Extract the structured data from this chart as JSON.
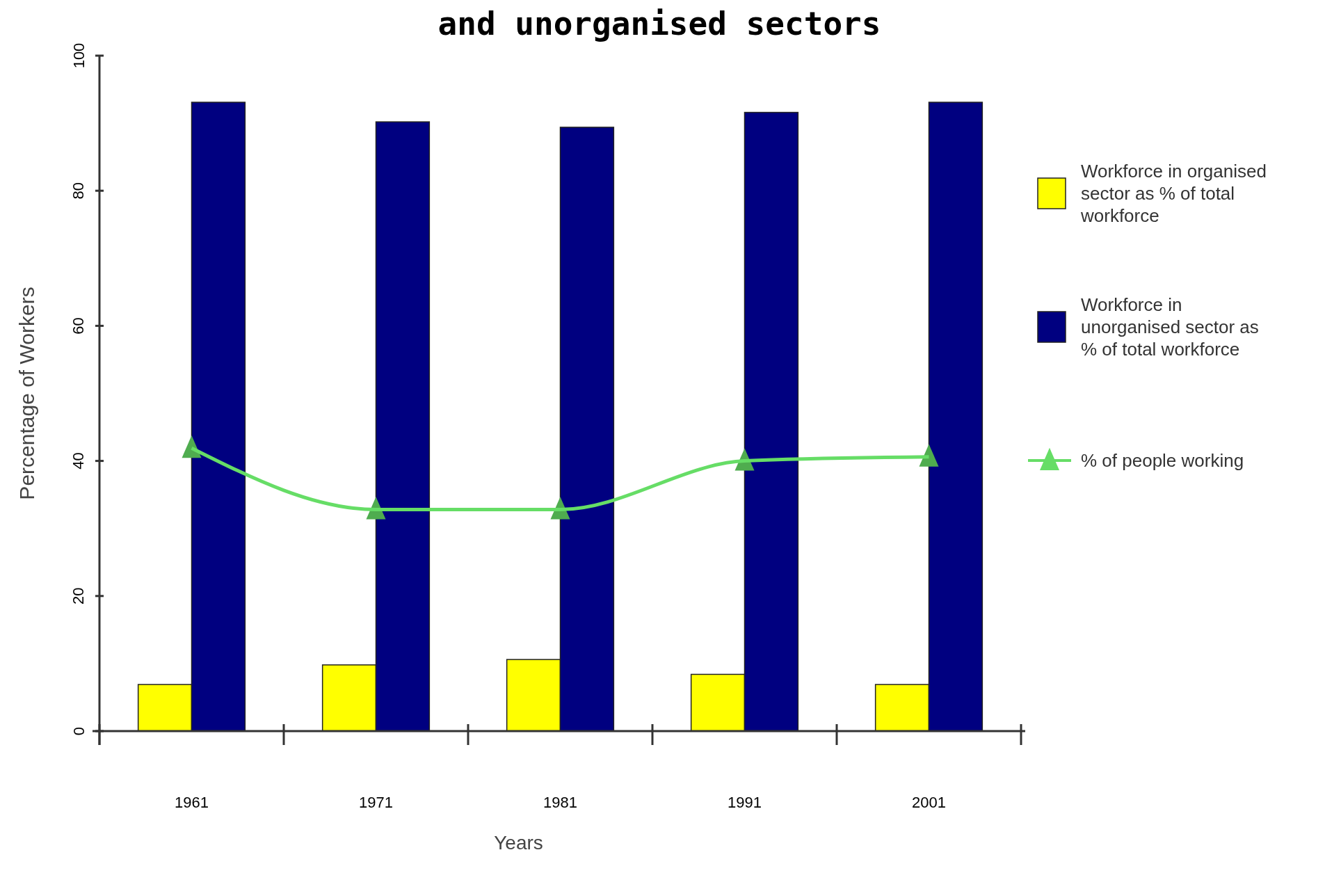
{
  "chart_data": {
    "type": "bar",
    "title": "and unorganised sectors",
    "xlabel": "Years",
    "ylabel": "Percentage of Workers",
    "categories": [
      "1961",
      "1971",
      "1981",
      "1991",
      "2001"
    ],
    "series": [
      {
        "name": "Workforce in organised sector as % of total workforce",
        "color": "#ffff00",
        "values": [
          6.9,
          9.8,
          10.6,
          8.4,
          6.9
        ]
      },
      {
        "name": "Workforce in unorganised sector as % of total workforce",
        "color": "#000080",
        "values": [
          93.1,
          90.2,
          89.4,
          91.6,
          93.1
        ]
      },
      {
        "name": "% of people working",
        "type": "line",
        "color": "#66dd66",
        "marker": "triangle",
        "values": [
          41.9,
          32.8,
          32.8,
          40,
          40.6
        ]
      }
    ],
    "ylim": [
      0,
      100
    ],
    "yticks": [
      0,
      20,
      40,
      60,
      80,
      100
    ],
    "grid": false,
    "legend": "right"
  }
}
